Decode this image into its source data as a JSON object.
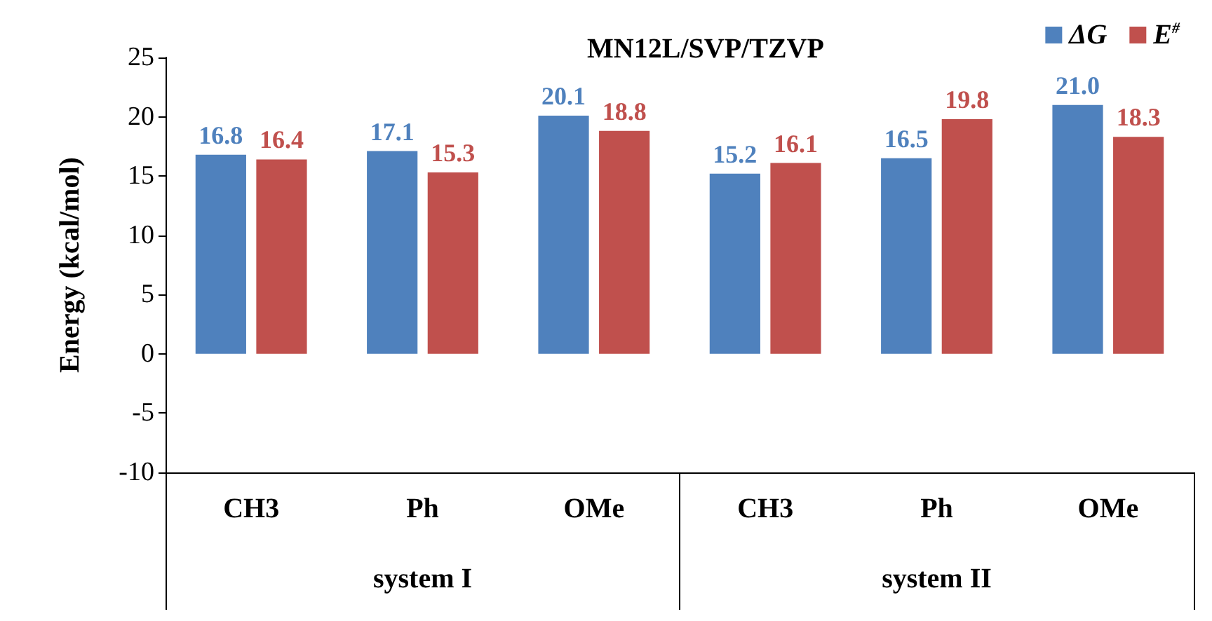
{
  "chart_data": {
    "type": "bar",
    "title": "MN12L/SVP/TZVP",
    "ylabel": "Energy (kcal/mol)",
    "categories": [
      "CH3",
      "Ph",
      "OMe",
      "CH3",
      "Ph",
      "OMe"
    ],
    "series": [
      {
        "name": "ΔG",
        "color": "#4f81bd",
        "values": [
          16.8,
          17.1,
          20.1,
          15.2,
          16.5,
          21.0
        ],
        "value_labels": [
          "16.8",
          "17.1",
          "20.1",
          "15.2",
          "16.5",
          "21.0"
        ]
      },
      {
        "name": "E$^{#}$",
        "color": "#c0504d",
        "values": [
          16.4,
          15.3,
          18.8,
          16.1,
          19.8,
          18.3
        ],
        "value_labels": [
          "16.4",
          "15.3",
          "18.8",
          "16.1",
          "19.8",
          "18.3"
        ]
      }
    ],
    "annotations": [
      "system I",
      "system II"
    ],
    "ylim": [
      -10,
      25
    ],
    "yticks": [
      -10,
      -5,
      0,
      5,
      10,
      15,
      20,
      25
    ],
    "grid": false,
    "legend": "top right"
  }
}
